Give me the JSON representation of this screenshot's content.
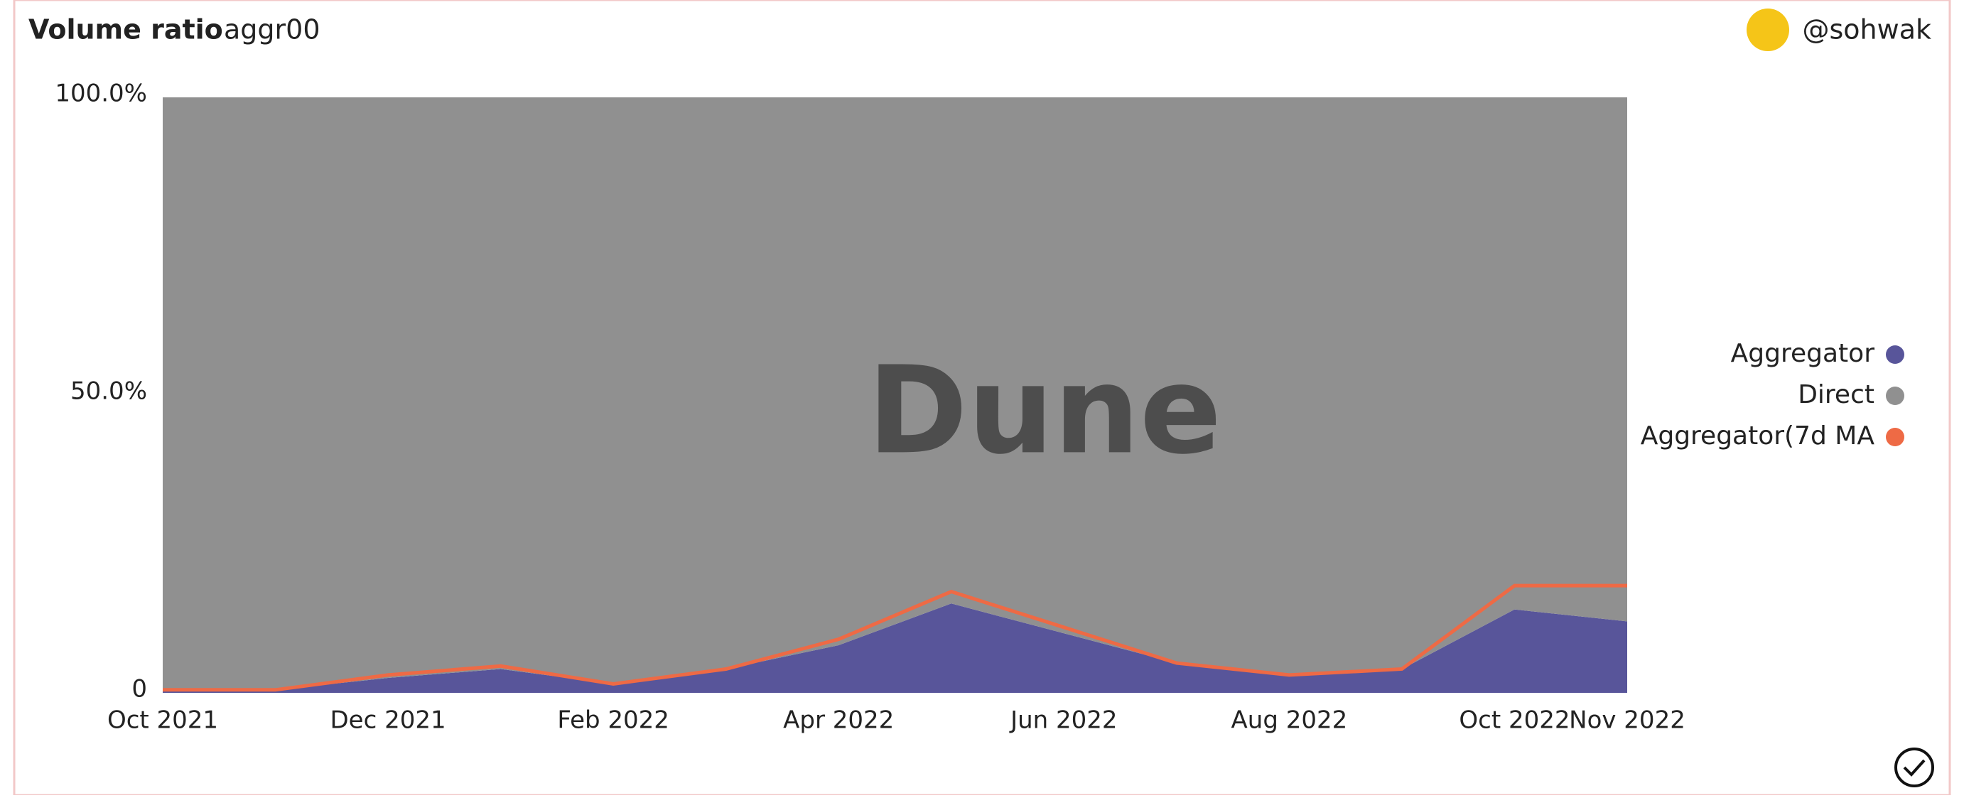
{
  "header": {
    "title": "Volume ratio",
    "subtitle": "aggr00",
    "user": "@sohwak"
  },
  "watermark": "Dune",
  "chart_data": {
    "type": "stacked-area-percent",
    "x": [
      "2021-10",
      "2021-11",
      "2021-12",
      "2022-01",
      "2022-02",
      "2022-03",
      "2022-04",
      "2022-05",
      "2022-06",
      "2022-07",
      "2022-08",
      "2022-09",
      "2022-10",
      "2022-11"
    ],
    "xlim": [
      "2021-10",
      "2022-11"
    ],
    "xticks": [
      {
        "value": "2021-10",
        "label": "Oct 2021"
      },
      {
        "value": "2021-12",
        "label": "Dec 2021"
      },
      {
        "value": "2022-02",
        "label": "Feb 2022"
      },
      {
        "value": "2022-04",
        "label": "Apr 2022"
      },
      {
        "value": "2022-06",
        "label": "Jun 2022"
      },
      {
        "value": "2022-08",
        "label": "Aug 2022"
      },
      {
        "value": "2022-10",
        "label": "Oct 2022"
      },
      {
        "value": "2022-11",
        "label": "Nov 2022"
      }
    ],
    "ylim": [
      0,
      100
    ],
    "yticks": [
      0,
      {
        "value": 50,
        "label": "50.0%"
      },
      {
        "value": 100,
        "label": "100.0%"
      }
    ],
    "series": [
      {
        "name": "Aggregator",
        "color": "#58559a",
        "values": [
          0.3,
          0.5,
          2.5,
          4,
          1.5,
          4,
          8,
          15,
          10,
          5,
          3,
          4,
          14,
          12
        ]
      },
      {
        "name": "Direct",
        "color": "#909090",
        "values": [
          99.7,
          99.5,
          97.5,
          96,
          98.5,
          96,
          92,
          85,
          90,
          95,
          97,
          96,
          86,
          88
        ]
      },
      {
        "name": "Aggregator(7d MA",
        "color": "#ee6a45",
        "line": true,
        "values": [
          0.5,
          0.5,
          3,
          4.5,
          1.5,
          4,
          9,
          17,
          11,
          5,
          3,
          4,
          18,
          18
        ]
      }
    ],
    "legend": "right"
  }
}
